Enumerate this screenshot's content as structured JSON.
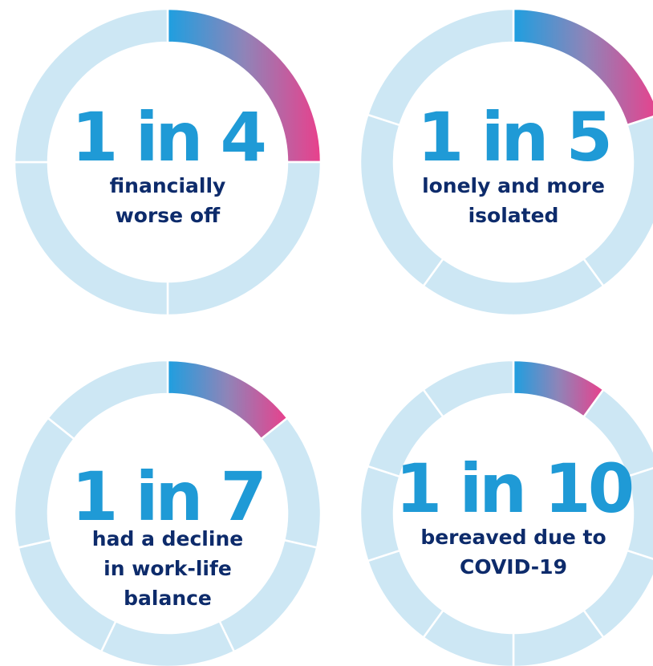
{
  "items": [
    {
      "headline": "1 in 4",
      "lines": [
        "financially",
        "worse off"
      ],
      "segments": 4,
      "highlighted": 1
    },
    {
      "headline": "1 in 5",
      "lines": [
        "lonely and more",
        "isolated"
      ],
      "segments": 5,
      "highlighted": 1
    },
    {
      "headline": "1 in 7",
      "lines": [
        "had a decline",
        "in work-life",
        "balance"
      ],
      "segments": 7,
      "highlighted": 1
    },
    {
      "headline": "1 in 10",
      "lines": [
        "bereaved due to",
        "COVID-19"
      ],
      "segments": 10,
      "highlighted": 1
    }
  ]
}
